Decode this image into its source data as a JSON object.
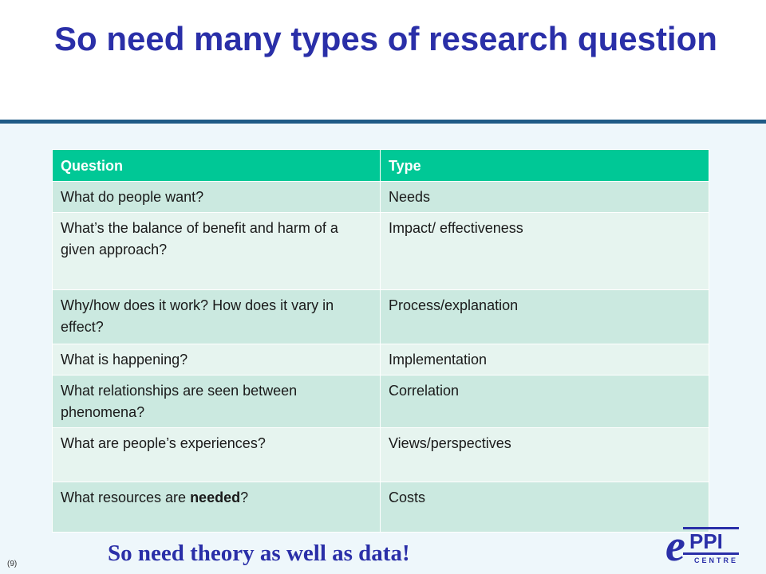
{
  "slide": {
    "title": "So need many types of research question",
    "footer": "So need theory as well as data!",
    "page_number": "(9)"
  },
  "table": {
    "headers": [
      "Question",
      "Type"
    ],
    "rows": [
      {
        "question": "What do people want?",
        "type": "Needs"
      },
      {
        "question": "What’s the balance of benefit and harm of a given approach?",
        "type": "Impact/ effectiveness"
      },
      {
        "question": "Why/how does it work?  How does it vary in effect?",
        "type": "Process/explanation"
      },
      {
        "question": "What is happening?",
        "type": "Implementation"
      },
      {
        "question": "What relationships are seen between phenomena?",
        "type": "Correlation"
      },
      {
        "question": "What are people’s experiences?",
        "type": "Views/perspectives"
      },
      {
        "question_parts": [
          "What resources are ",
          "needed",
          "?"
        ],
        "type": "Costs"
      }
    ]
  },
  "logo": {
    "letter": "e",
    "text": "PPI",
    "subtext": "CENTRE"
  },
  "colors": {
    "title": "#2a2fa8",
    "rule": "#1f5b86",
    "header": "#00c896",
    "row_dark": "#cbe9e0",
    "row_light": "#e6f4ef"
  }
}
